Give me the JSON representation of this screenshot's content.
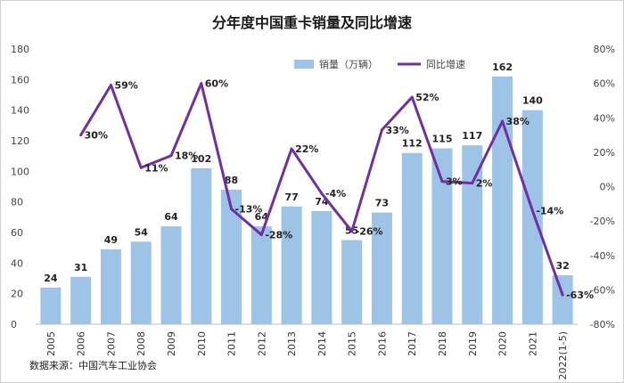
{
  "chart_data": {
    "type": "bar+line",
    "title": "分年度中国重卡销量及同比增速",
    "source": "数据来源：中国汽车工业协会",
    "categories": [
      "2005",
      "2006",
      "2007",
      "2008",
      "2009",
      "2010",
      "2011",
      "2012",
      "2013",
      "2014",
      "2015",
      "2016",
      "2017",
      "2018",
      "2019",
      "2020",
      "2021",
      "2022(1-5)"
    ],
    "series": [
      {
        "name": "销量（万辆）",
        "type": "bar",
        "axis": "left",
        "color": "#9dc3e6",
        "values": [
          24,
          31,
          49,
          54,
          64,
          102,
          88,
          64,
          77,
          74,
          55,
          73,
          112,
          115,
          117,
          162,
          140,
          32
        ],
        "labels": [
          "24",
          "31",
          "49",
          "54",
          "64",
          "102",
          "88",
          "64",
          "77",
          "74",
          "55",
          "73",
          "112",
          "115",
          "117",
          "162",
          "140",
          "32"
        ]
      },
      {
        "name": "同比增速",
        "type": "line",
        "axis": "right",
        "color": "#7030a0",
        "values": [
          null,
          30,
          59,
          11,
          18,
          60,
          -13,
          -28,
          22,
          -4,
          -26,
          33,
          52,
          3,
          2,
          38,
          -14,
          -63
        ],
        "labels": [
          null,
          "30%",
          "59%",
          "11%",
          "18%",
          "60%",
          "-13%",
          "-28%",
          "22%",
          "-4%",
          "-26%",
          "33%",
          "52%",
          "3%",
          "2%",
          "38%",
          "-14%",
          "-63%"
        ]
      }
    ],
    "left_axis": {
      "ylim": [
        0,
        180
      ],
      "ticks": [
        "0",
        "20",
        "40",
        "60",
        "80",
        "100",
        "120",
        "140",
        "160",
        "180"
      ]
    },
    "right_axis": {
      "ylim": [
        -80,
        80
      ],
      "ticks": [
        "-80%",
        "-60%",
        "-40%",
        "-20%",
        "0%",
        "20%",
        "40%",
        "60%",
        "80%"
      ]
    },
    "grid": false,
    "legend_position": "top-right"
  }
}
